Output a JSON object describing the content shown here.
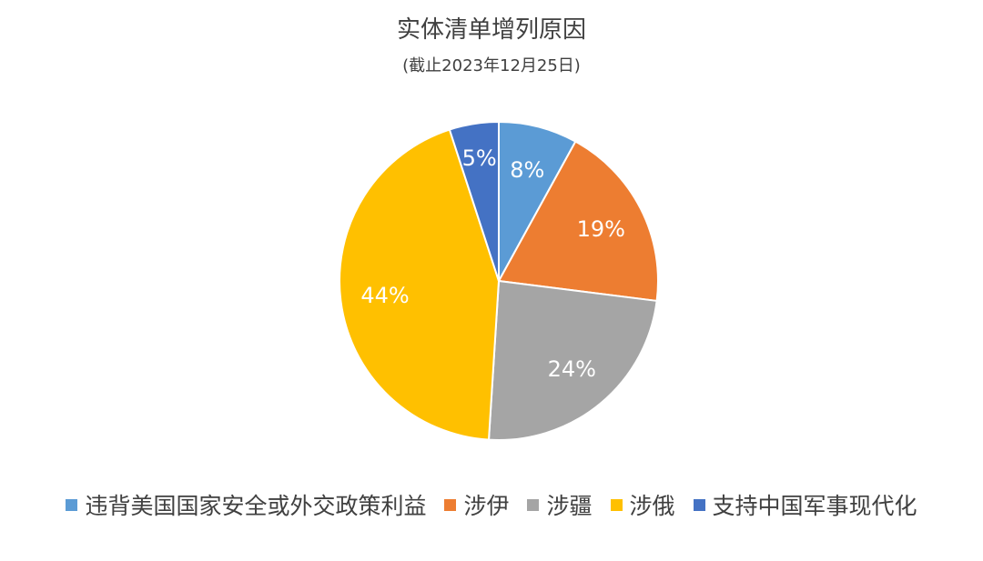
{
  "chart_data": {
    "type": "pie",
    "title": "实体清单增列原因",
    "subtitle": "(截止2023年12月25日)",
    "categories": [
      "违背美国国家安全或外交政策利益",
      "涉伊",
      "涉疆",
      "涉俄",
      "支持中国军事现代化"
    ],
    "values": [
      8,
      19,
      24,
      44,
      5
    ],
    "labels": [
      "8%",
      "19%",
      "24%",
      "44%",
      "5%"
    ],
    "colors": [
      "#5B9BD5",
      "#ED7D31",
      "#A5A5A5",
      "#FFC000",
      "#4472C4"
    ],
    "label_colors": [
      "#ffffff",
      "#ffffff",
      "#ffffff",
      "#ffffff",
      "#ffffff"
    ],
    "legend_position": "bottom",
    "start": "top",
    "direction": "clockwise"
  }
}
